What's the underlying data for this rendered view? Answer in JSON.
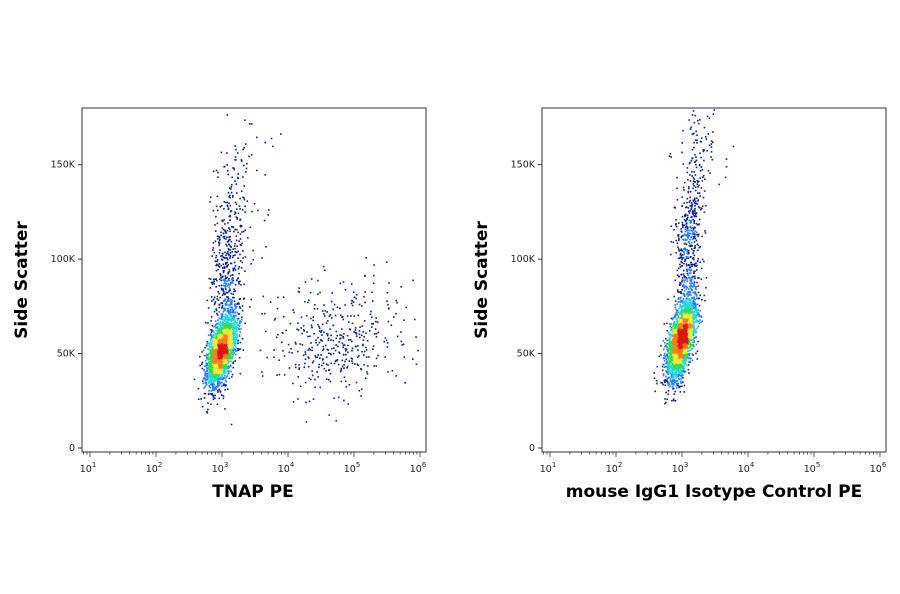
{
  "chart_data": [
    {
      "type": "scatter",
      "subtype": "flow-cytometry-density-dot-plot",
      "title": "",
      "xlabel": "TNAP PE",
      "ylabel": "Side Scatter",
      "xscale": "log",
      "xlim": [
        10,
        1000000
      ],
      "ylim": [
        0,
        180000
      ],
      "x_ticks": [
        {
          "base": "10",
          "exp": "1",
          "value": 10
        },
        {
          "base": "10",
          "exp": "2",
          "value": 100
        },
        {
          "base": "10",
          "exp": "3",
          "value": 1000
        },
        {
          "base": "10",
          "exp": "4",
          "value": 10000
        },
        {
          "base": "10",
          "exp": "5",
          "value": 100000
        },
        {
          "base": "10",
          "exp": "6",
          "value": 1000000
        }
      ],
      "y_ticks": [
        {
          "label": "0",
          "value": 0
        },
        {
          "label": "50K",
          "value": 50000
        },
        {
          "label": "100K",
          "value": 100000
        },
        {
          "label": "150K",
          "value": 150000
        }
      ],
      "density_colormap": [
        "#0a1aa8",
        "#1e7bff",
        "#22d8e0",
        "#2ee04a",
        "#f0e83a",
        "#ff7a1a",
        "#d81818"
      ],
      "populations": [
        {
          "name": "main",
          "count": 2400,
          "center_log10x": 2.98,
          "center_y": 52000,
          "sd_log10x": 0.11,
          "sd_y": 9500,
          "rho": 0.55
        },
        {
          "name": "upper-tail",
          "count": 520,
          "center_log10x": 3.08,
          "center_y": 95000,
          "sd_log10x": 0.13,
          "sd_y": 25000,
          "rho": 0.2
        },
        {
          "name": "positive",
          "count": 420,
          "center_log10x": 4.7,
          "center_y": 57000,
          "sd_log10x": 0.55,
          "sd_y": 15000,
          "rho": 0.0
        },
        {
          "name": "sparse-high",
          "count": 40,
          "center_log10x": 3.4,
          "center_y": 145000,
          "sd_log10x": 0.25,
          "sd_y": 18000,
          "rho": 0.0
        }
      ]
    },
    {
      "type": "scatter",
      "subtype": "flow-cytometry-density-dot-plot",
      "title": "",
      "xlabel": "mouse IgG1 Isotype Control PE",
      "ylabel": "Side Scatter",
      "xscale": "log",
      "xlim": [
        10,
        1000000
      ],
      "ylim": [
        0,
        180000
      ],
      "x_ticks": [
        {
          "base": "10",
          "exp": "1",
          "value": 10
        },
        {
          "base": "10",
          "exp": "2",
          "value": 100
        },
        {
          "base": "10",
          "exp": "3",
          "value": 1000
        },
        {
          "base": "10",
          "exp": "4",
          "value": 10000
        },
        {
          "base": "10",
          "exp": "5",
          "value": 100000
        },
        {
          "base": "10",
          "exp": "6",
          "value": 1000000
        }
      ],
      "y_ticks": [
        {
          "label": "0",
          "value": 0
        },
        {
          "label": "50K",
          "value": 50000
        },
        {
          "label": "100K",
          "value": 100000
        },
        {
          "label": "150K",
          "value": 150000
        }
      ],
      "density_colormap": [
        "#0a1aa8",
        "#1e7bff",
        "#22d8e0",
        "#2ee04a",
        "#f0e83a",
        "#ff7a1a",
        "#d81818"
      ],
      "populations": [
        {
          "name": "main",
          "count": 2600,
          "center_log10x": 2.98,
          "center_y": 58000,
          "sd_log10x": 0.11,
          "sd_y": 11000,
          "rho": 0.6
        },
        {
          "name": "upper-tail",
          "count": 500,
          "center_log10x": 3.1,
          "center_y": 110000,
          "sd_log10x": 0.1,
          "sd_y": 22000,
          "rho": 0.3
        },
        {
          "name": "sparse-high",
          "count": 60,
          "center_log10x": 3.3,
          "center_y": 160000,
          "sd_log10x": 0.2,
          "sd_y": 12000,
          "rho": 0.0
        }
      ]
    }
  ]
}
